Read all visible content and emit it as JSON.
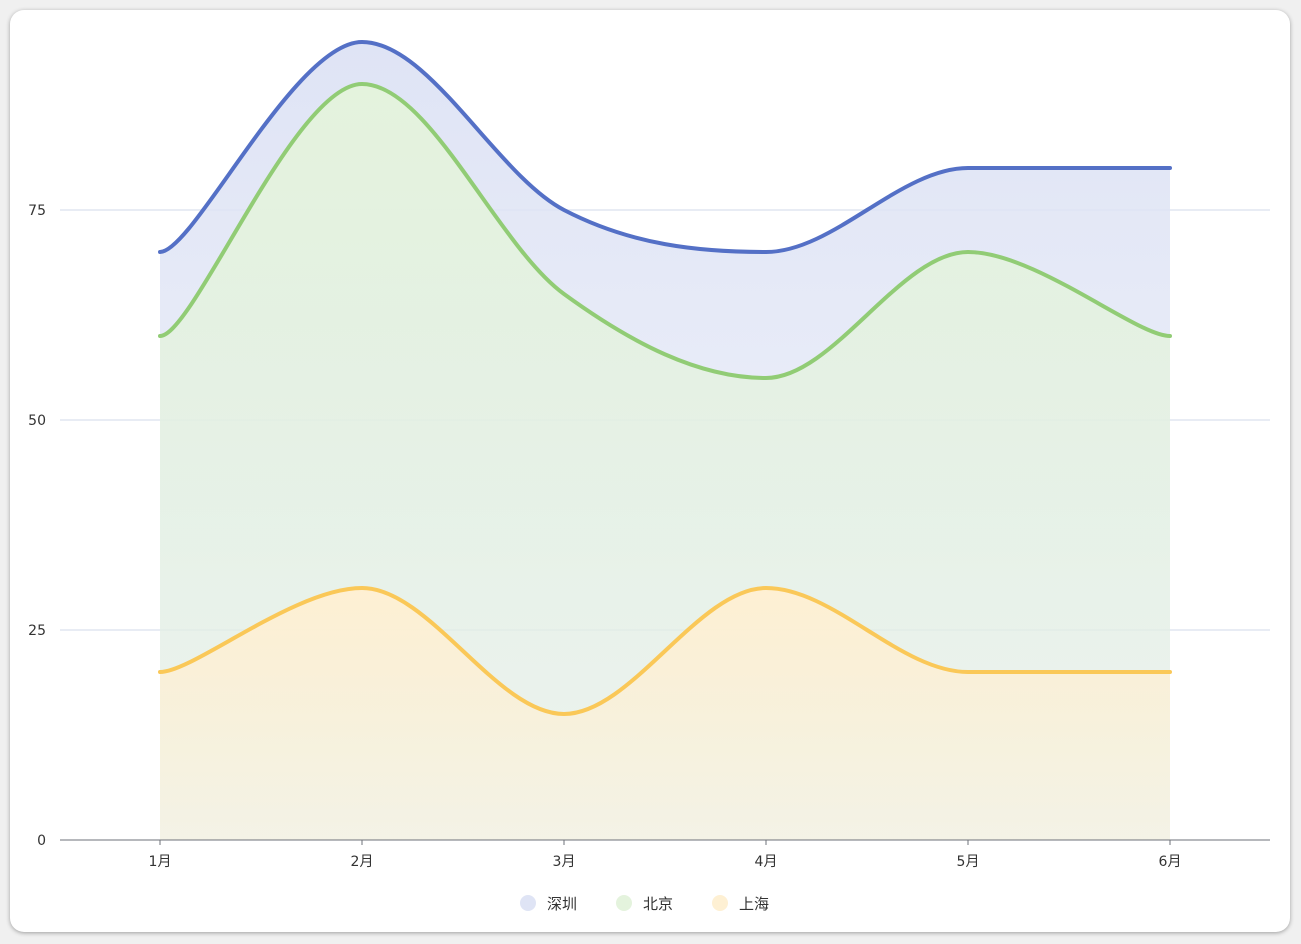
{
  "chart_data": {
    "type": "area",
    "categories": [
      "1月",
      "2月",
      "3月",
      "4月",
      "5月",
      "6月"
    ],
    "series": [
      {
        "name": "深圳",
        "values": [
          70,
          95,
          75,
          70,
          80,
          80
        ],
        "color": "#5470c6",
        "fill": "#dfe4f5"
      },
      {
        "name": "北京",
        "values": [
          60,
          90,
          65,
          55,
          70,
          60
        ],
        "color": "#91cc75",
        "fill": "#e4f3dd"
      },
      {
        "name": "上海",
        "values": [
          20,
          30,
          15,
          30,
          20,
          20
        ],
        "color": "#fac858",
        "fill": "#fef0d3"
      }
    ],
    "yticks": [
      "0",
      "25",
      "50",
      "75"
    ],
    "ylim": [
      0,
      100
    ],
    "smooth": true,
    "grid": true,
    "legend_position": "bottom-center",
    "title": "",
    "xlabel": "",
    "ylabel": ""
  }
}
